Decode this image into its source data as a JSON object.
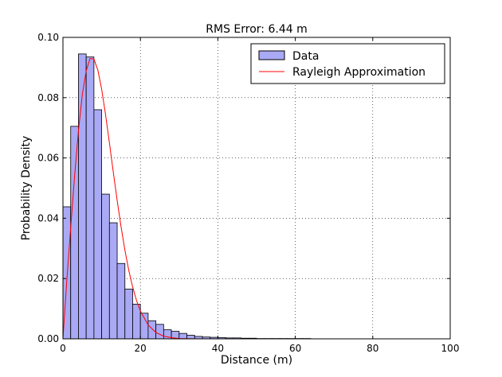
{
  "chart_data": {
    "type": "bar",
    "title": "RMS Error: 6.44 m",
    "xlabel": "Distance (m)",
    "ylabel": "Probability Density",
    "xlim": [
      0,
      100
    ],
    "ylim": [
      0,
      0.1
    ],
    "xticks": [
      0,
      20,
      40,
      60,
      80,
      100
    ],
    "xtick_labels": [
      "0",
      "20",
      "40",
      "60",
      "80",
      "100"
    ],
    "yticks": [
      0,
      0.02,
      0.04,
      0.06,
      0.08,
      0.1
    ],
    "ytick_labels": [
      "0.00",
      "0.02",
      "0.04",
      "0.06",
      "0.08",
      "0.10"
    ],
    "grid": true,
    "legend_position": "top-right",
    "series": [
      {
        "name": "Data",
        "kind": "histogram",
        "color": "#a9a9f5",
        "edge_color": "#000000",
        "bin_start": 0,
        "bin_width": 2,
        "values": [
          0.0438,
          0.0705,
          0.0945,
          0.0935,
          0.076,
          0.048,
          0.0385,
          0.025,
          0.0165,
          0.0115,
          0.0085,
          0.006,
          0.0048,
          0.003,
          0.0025,
          0.0018,
          0.0012,
          0.0008,
          0.0006,
          0.0005,
          0.0004,
          0.0003,
          0.0003,
          0.0002,
          0.0002,
          0.0001,
          0.0001,
          0.0001,
          0.0001,
          0.0001,
          0.0001,
          0.0001,
          0.0,
          0.0,
          0.0,
          0.0,
          0.0,
          0.0,
          0.0,
          0.0,
          0.0,
          0.0,
          0.0,
          0.0,
          0.0,
          0.0
        ]
      },
      {
        "name": "Rayleigh Approximation",
        "kind": "line",
        "color": "#ff0000",
        "x": [
          0,
          1,
          2,
          3,
          4,
          5,
          6,
          7,
          8,
          9,
          10,
          11,
          12,
          13,
          14,
          15,
          16,
          17,
          18,
          19,
          20,
          22,
          24,
          26,
          28,
          30,
          35,
          40,
          50,
          60,
          80,
          100
        ],
        "y": [
          0.0,
          0.0194,
          0.0369,
          0.0539,
          0.069,
          0.081,
          0.0889,
          0.093,
          0.0928,
          0.0892,
          0.0828,
          0.0744,
          0.065,
          0.0553,
          0.0459,
          0.0372,
          0.0294,
          0.0227,
          0.0172,
          0.0127,
          0.0092,
          0.0046,
          0.0021,
          0.0009,
          0.0004,
          0.0001,
          0.0,
          0.0,
          0.0,
          0.0,
          0.0,
          0.0
        ]
      }
    ]
  }
}
